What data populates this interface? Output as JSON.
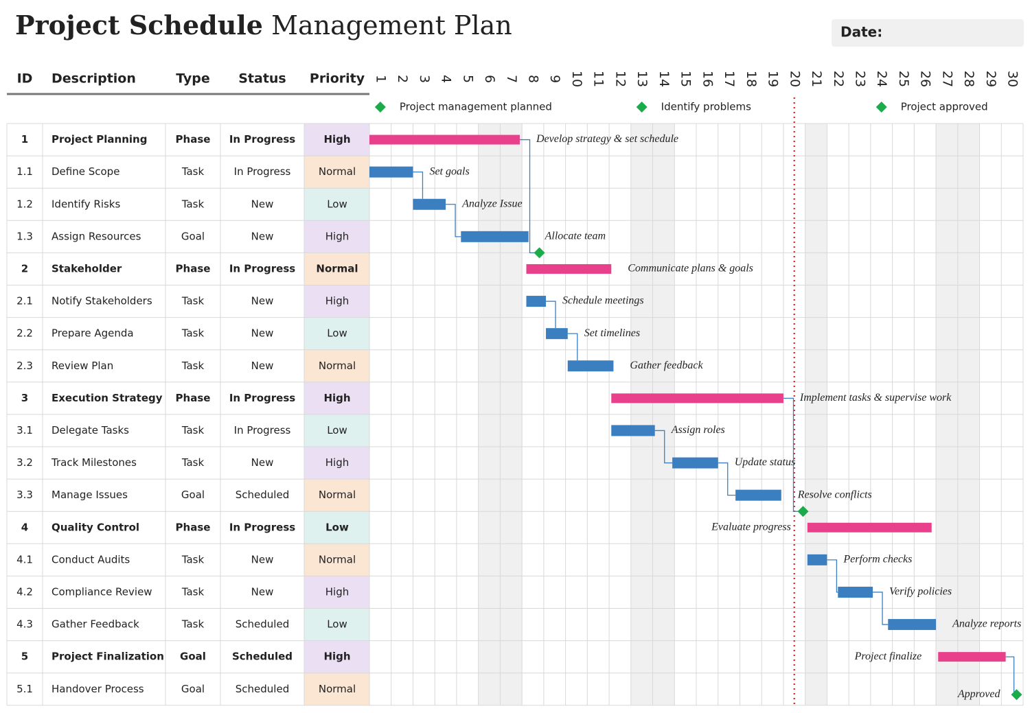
{
  "header": {
    "title_bold": "Project Schedule",
    "title_rest": "Management Plan",
    "date_label": "Date:"
  },
  "table": {
    "columns": [
      "ID",
      "Description",
      "Type",
      "Status",
      "Priority"
    ],
    "rows": [
      [
        "1",
        "Project Planning",
        "Phase",
        "In Progress",
        "High"
      ],
      [
        "1.1",
        "Define Scope",
        "Task",
        "In Progress",
        "Normal"
      ],
      [
        "1.2",
        "Identify Risks",
        "Task",
        "New",
        "Low"
      ],
      [
        "1.3",
        "Assign Resources",
        "Goal",
        "New",
        "High"
      ],
      [
        "2",
        "Stakeholder",
        "Phase",
        "In Progress",
        "Normal"
      ],
      [
        "2.1",
        "Notify Stakeholders",
        "Task",
        "New",
        "High"
      ],
      [
        "2.2",
        "Prepare Agenda",
        "Task",
        "New",
        "Low"
      ],
      [
        "2.3",
        "Review Plan",
        "Task",
        "New",
        "Normal"
      ],
      [
        "3",
        "Execution Strategy",
        "Phase",
        "In Progress",
        "High"
      ],
      [
        "3.1",
        "Delegate Tasks",
        "Task",
        "In Progress",
        "Low"
      ],
      [
        "3.2",
        "Track Milestones",
        "Task",
        "New",
        "High"
      ],
      [
        "3.3",
        "Manage Issues",
        "Goal",
        "Scheduled",
        "Normal"
      ],
      [
        "4",
        "Quality Control",
        "Phase",
        "In Progress",
        "Low"
      ],
      [
        "4.1",
        "Conduct Audits",
        "Task",
        "New",
        "Normal"
      ],
      [
        "4.2",
        "Compliance Review",
        "Task",
        "New",
        "High"
      ],
      [
        "4.3",
        "Gather Feedback",
        "Task",
        "Scheduled",
        "Low"
      ],
      [
        "5",
        "Project Finalization",
        "Goal",
        "Scheduled",
        "High"
      ],
      [
        "5.1",
        "Handover Process",
        "Goal",
        "Scheduled",
        "Normal"
      ]
    ]
  },
  "chart_data": {
    "type": "gantt",
    "xlim": [
      0.5,
      30.5
    ],
    "xticks": [
      1,
      2,
      3,
      4,
      5,
      6,
      7,
      8,
      9,
      10,
      11,
      12,
      13,
      14,
      15,
      16,
      17,
      18,
      19,
      20,
      21,
      22,
      23,
      24,
      25,
      26,
      27,
      28,
      29,
      30
    ],
    "milestone_legend": [
      {
        "label": "Project management planned",
        "x": 1
      },
      {
        "label": "Identify problems",
        "x": 13
      },
      {
        "label": "Project approved",
        "x": 24
      }
    ],
    "today": 20,
    "colors": {
      "phase": "#e8408a",
      "task": "#3b7fc0",
      "milestone": "#1aab4b",
      "today": "#e03030"
    },
    "tasks": [
      {
        "label": "Develop strategy & set schedule",
        "start": 0.5,
        "end": 7.4
      },
      {
        "label": "Set goals",
        "start": 0.5,
        "end": 2.5
      },
      {
        "label": "Analyze Issue",
        "start": 2.5,
        "end": 4.0
      },
      {
        "label": "Allocate team",
        "start": 4.7,
        "end": 7.8,
        "milestone": 8.3
      },
      {
        "label": "Communicate plans & goals",
        "start": 7.7,
        "end": 11.6
      },
      {
        "label": "Schedule meetings",
        "start": 7.7,
        "end": 8.6
      },
      {
        "label": "Set timelines",
        "start": 8.6,
        "end": 9.6
      },
      {
        "label": "Gather feedback",
        "start": 9.6,
        "end": 11.7
      },
      {
        "label": "Implement tasks & supervise work",
        "start": 11.6,
        "end": 19.5
      },
      {
        "label": "Assign roles",
        "start": 11.6,
        "end": 13.6
      },
      {
        "label": "Update status",
        "start": 14.4,
        "end": 16.5
      },
      {
        "label": "Resolve conflicts",
        "start": 17.3,
        "end": 19.4,
        "milestone": 20.4
      },
      {
        "label": "Evaluate progress",
        "start": 20.6,
        "end": 26.3
      },
      {
        "label": "Perform checks",
        "start": 20.6,
        "end": 21.5
      },
      {
        "label": "Verify policies",
        "start": 22.0,
        "end": 23.6
      },
      {
        "label": "Analyze reports",
        "start": 24.3,
        "end": 26.5
      },
      {
        "label": "Project finalize",
        "start": 26.6,
        "end": 29.7
      },
      {
        "label": "Approved",
        "milestone": 30.2
      }
    ]
  }
}
